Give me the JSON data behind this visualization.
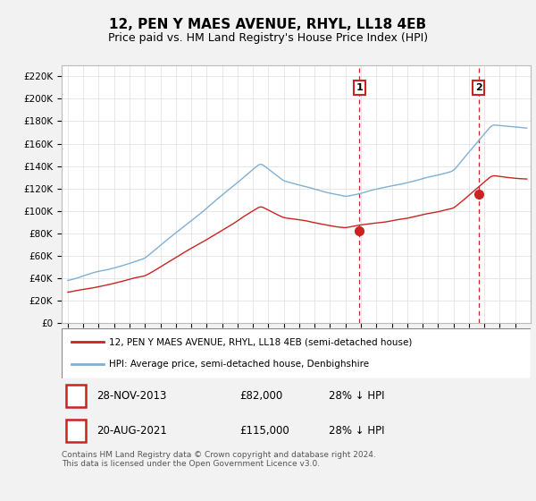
{
  "title": "12, PEN Y MAES AVENUE, RHYL, LL18 4EB",
  "subtitle": "Price paid vs. HM Land Registry's House Price Index (HPI)",
  "title_fontsize": 11,
  "subtitle_fontsize": 9,
  "ylabel_ticks": [
    "£0",
    "£20K",
    "£40K",
    "£60K",
    "£80K",
    "£100K",
    "£120K",
    "£140K",
    "£160K",
    "£180K",
    "£200K",
    "£220K"
  ],
  "ytick_values": [
    0,
    20000,
    40000,
    60000,
    80000,
    100000,
    120000,
    140000,
    160000,
    180000,
    200000,
    220000
  ],
  "ylim": [
    0,
    230000
  ],
  "hpi_color": "#7eb0d4",
  "price_color": "#cc2222",
  "transaction1_date": 2013.91,
  "transaction1_price": 82000,
  "transaction2_date": 2021.63,
  "transaction2_price": 115000,
  "vline_color": "#cc2222",
  "background_color": "#f2f2f2",
  "plot_bg_color": "#ffffff",
  "grid_color": "#dddddd",
  "legend_label_red": "12, PEN Y MAES AVENUE, RHYL, LL18 4EB (semi-detached house)",
  "legend_label_blue": "HPI: Average price, semi-detached house, Denbighshire",
  "table_row1": [
    "1",
    "28-NOV-2013",
    "£82,000",
    "28% ↓ HPI"
  ],
  "table_row2": [
    "2",
    "20-AUG-2021",
    "£115,000",
    "28% ↓ HPI"
  ],
  "footer": "Contains HM Land Registry data © Crown copyright and database right 2024.\nThis data is licensed under the Open Government Licence v3.0."
}
